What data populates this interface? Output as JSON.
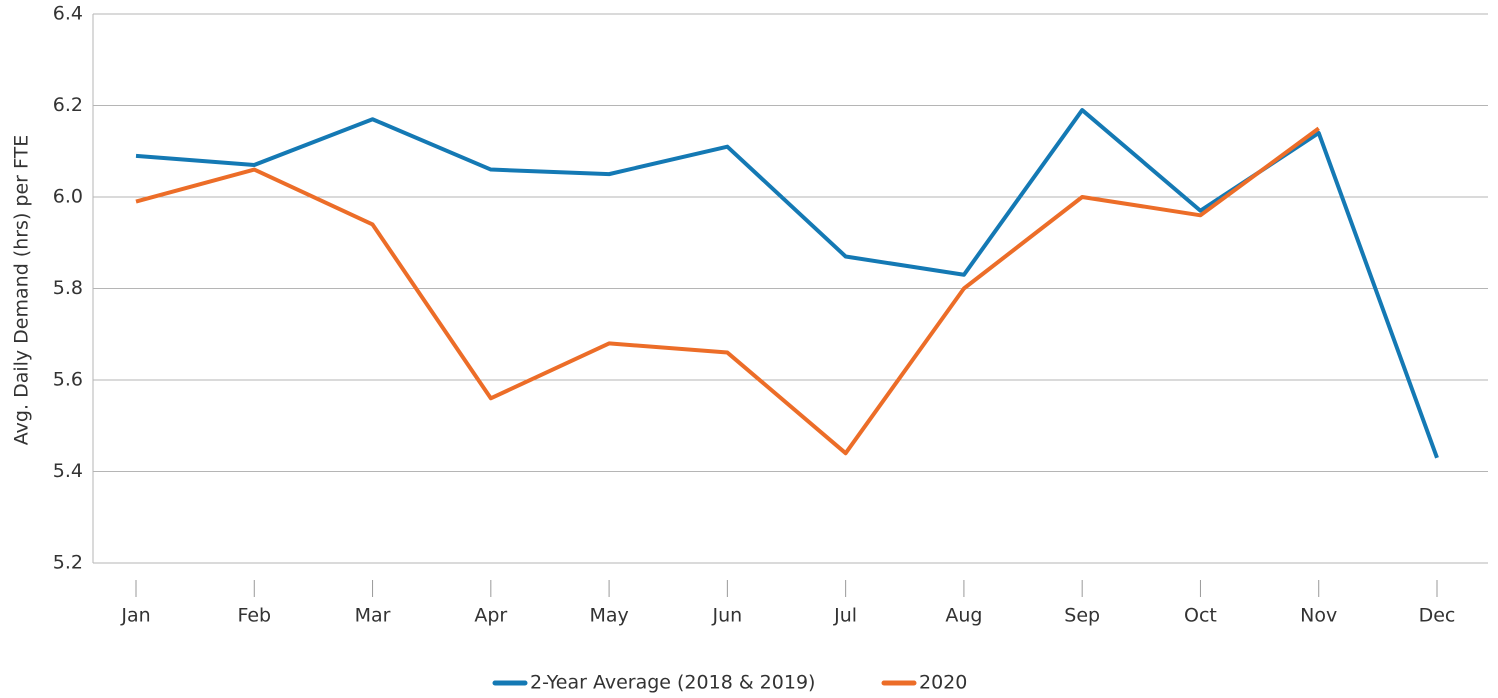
{
  "chart_data": {
    "type": "line",
    "ylabel": "Avg. Daily Demand (hrs) per FTE",
    "categories": [
      "Jan",
      "Feb",
      "Mar",
      "Apr",
      "May",
      "Jun",
      "Jul",
      "Aug",
      "Sep",
      "Oct",
      "Nov",
      "Dec"
    ],
    "series": [
      {
        "name": "2-Year Average (2018 & 2019)",
        "color": "#1479b4",
        "values": [
          6.09,
          6.07,
          6.17,
          6.06,
          6.05,
          6.11,
          5.87,
          5.83,
          6.19,
          5.97,
          6.14,
          5.43
        ]
      },
      {
        "name": "2020",
        "color": "#ec6d28",
        "values": [
          5.99,
          6.06,
          5.94,
          5.56,
          5.68,
          5.66,
          5.44,
          5.8,
          6.0,
          5.96,
          6.15,
          null
        ]
      }
    ],
    "ylim": [
      5.2,
      6.4
    ],
    "yticks": [
      5.2,
      5.4,
      5.6,
      5.8,
      {
        "value": 6,
        "label": "6.0"
      },
      6.2,
      6.4
    ],
    "grid": true,
    "legend": "bottom"
  }
}
